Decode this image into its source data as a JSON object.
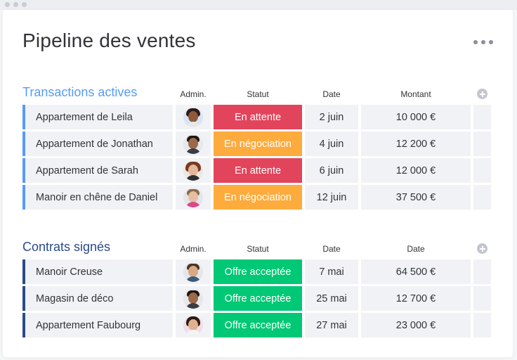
{
  "page": {
    "title": "Pipeline des ventes"
  },
  "colors": {
    "active_group": "#579bfc",
    "signed_group": "#2b4a8a",
    "status_waiting": "#e2445c",
    "status_negotiation": "#fdab3d",
    "status_accepted": "#00c875"
  },
  "groups": [
    {
      "title": "Transactions actives",
      "columns": {
        "admin": "Admin.",
        "status": "Statut",
        "date": "Date",
        "amount": "Montant"
      },
      "rows": [
        {
          "name": "Appartement de Leila",
          "status": "En attente",
          "date": "2 juin",
          "amount": "10 000 €",
          "avatar": "avatar-woman-curly-icon"
        },
        {
          "name": "Appartement de Jonathan",
          "status": "En négociation",
          "date": "4 juin",
          "amount": "12 200 €",
          "avatar": "avatar-man-beard-icon"
        },
        {
          "name": "Appartement de Sarah",
          "status": "En attente",
          "date": "6 juin",
          "amount": "12 000 €",
          "avatar": "avatar-woman-red-hair-icon"
        },
        {
          "name": "Manoir en chêne de Daniel",
          "status": "En négociation",
          "date": "12 juin",
          "amount": "37 500 €",
          "avatar": "avatar-man-light-hair-icon"
        }
      ]
    },
    {
      "title": "Contrats signés",
      "columns": {
        "admin": "Admin.",
        "status": "Statut",
        "date": "Date",
        "amount": "Date"
      },
      "rows": [
        {
          "name": "Manoir Creuse",
          "status": "Offre acceptée",
          "date": "7 mai",
          "amount": "64 500 €",
          "avatar": "avatar-man-short-hair-icon"
        },
        {
          "name": "Magasin de déco",
          "status": "Offre acceptée",
          "date": "25 mai",
          "amount": "12 700 €",
          "avatar": "avatar-man-beard-icon"
        },
        {
          "name": "Appartement Faubourg",
          "status": "Offre acceptée",
          "date": "27 mai",
          "amount": "23 000 €",
          "avatar": "avatar-woman-dark-hair-icon"
        }
      ]
    }
  ]
}
